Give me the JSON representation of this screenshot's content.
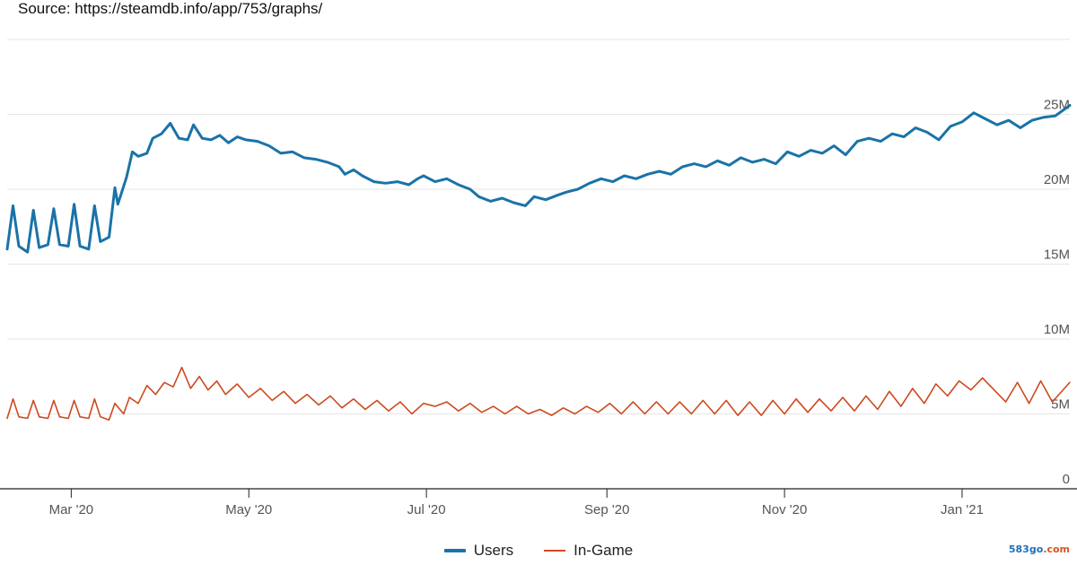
{
  "source_text": "Source: https://steamdb.info/app/753/graphs/",
  "watermark": {
    "name": "583go",
    "ext": ".com"
  },
  "chart_data": {
    "type": "line",
    "title": "",
    "xlabel": "",
    "ylabel": "",
    "x_range": [
      "2020-02-08",
      "2021-02-07"
    ],
    "ylim": [
      0,
      30000000
    ],
    "y_ticks": [
      {
        "value": 0,
        "label": "0"
      },
      {
        "value": 5000000,
        "label": "5M"
      },
      {
        "value": 10000000,
        "label": "10M"
      },
      {
        "value": 15000000,
        "label": "15M"
      },
      {
        "value": 20000000,
        "label": "20M"
      },
      {
        "value": 25000000,
        "label": "25M"
      }
    ],
    "x_ticks": [
      {
        "date": "2020-03-01",
        "label": "Mar '20"
      },
      {
        "date": "2020-05-01",
        "label": "May '20"
      },
      {
        "date": "2020-07-01",
        "label": "Jul '20"
      },
      {
        "date": "2020-09-01",
        "label": "Sep '20"
      },
      {
        "date": "2020-11-01",
        "label": "Nov '20"
      },
      {
        "date": "2021-01-01",
        "label": "Jan '21"
      }
    ],
    "grid": true,
    "legend_position": "bottom-center",
    "series": [
      {
        "name": "Users",
        "color": "#1a73a8",
        "points": [
          [
            "2020-02-08",
            16000000
          ],
          [
            "2020-02-10",
            18900000
          ],
          [
            "2020-02-12",
            16200000
          ],
          [
            "2020-02-15",
            15800000
          ],
          [
            "2020-02-17",
            18600000
          ],
          [
            "2020-02-19",
            16100000
          ],
          [
            "2020-02-22",
            16300000
          ],
          [
            "2020-02-24",
            18700000
          ],
          [
            "2020-02-26",
            16300000
          ],
          [
            "2020-02-29",
            16200000
          ],
          [
            "2020-03-02",
            19000000
          ],
          [
            "2020-03-04",
            16200000
          ],
          [
            "2020-03-07",
            16000000
          ],
          [
            "2020-03-09",
            18900000
          ],
          [
            "2020-03-11",
            16500000
          ],
          [
            "2020-03-14",
            16800000
          ],
          [
            "2020-03-16",
            20100000
          ],
          [
            "2020-03-17",
            19000000
          ],
          [
            "2020-03-20",
            20800000
          ],
          [
            "2020-03-22",
            22500000
          ],
          [
            "2020-03-24",
            22200000
          ],
          [
            "2020-03-27",
            22400000
          ],
          [
            "2020-03-29",
            23400000
          ],
          [
            "2020-04-01",
            23700000
          ],
          [
            "2020-04-04",
            24400000
          ],
          [
            "2020-04-07",
            23400000
          ],
          [
            "2020-04-10",
            23300000
          ],
          [
            "2020-04-12",
            24300000
          ],
          [
            "2020-04-15",
            23400000
          ],
          [
            "2020-04-18",
            23300000
          ],
          [
            "2020-04-21",
            23600000
          ],
          [
            "2020-04-24",
            23100000
          ],
          [
            "2020-04-27",
            23500000
          ],
          [
            "2020-04-30",
            23300000
          ],
          [
            "2020-05-04",
            23200000
          ],
          [
            "2020-05-08",
            22900000
          ],
          [
            "2020-05-12",
            22400000
          ],
          [
            "2020-05-16",
            22500000
          ],
          [
            "2020-05-20",
            22100000
          ],
          [
            "2020-05-24",
            22000000
          ],
          [
            "2020-05-28",
            21800000
          ],
          [
            "2020-06-01",
            21500000
          ],
          [
            "2020-06-03",
            21000000
          ],
          [
            "2020-06-06",
            21300000
          ],
          [
            "2020-06-09",
            20900000
          ],
          [
            "2020-06-13",
            20500000
          ],
          [
            "2020-06-17",
            20400000
          ],
          [
            "2020-06-21",
            20500000
          ],
          [
            "2020-06-25",
            20300000
          ],
          [
            "2020-06-28",
            20700000
          ],
          [
            "2020-06-30",
            20900000
          ],
          [
            "2020-07-04",
            20500000
          ],
          [
            "2020-07-08",
            20700000
          ],
          [
            "2020-07-12",
            20300000
          ],
          [
            "2020-07-16",
            20000000
          ],
          [
            "2020-07-19",
            19500000
          ],
          [
            "2020-07-23",
            19200000
          ],
          [
            "2020-07-27",
            19400000
          ],
          [
            "2020-07-31",
            19100000
          ],
          [
            "2020-08-04",
            18900000
          ],
          [
            "2020-08-07",
            19500000
          ],
          [
            "2020-08-11",
            19300000
          ],
          [
            "2020-08-15",
            19600000
          ],
          [
            "2020-08-18",
            19800000
          ],
          [
            "2020-08-22",
            20000000
          ],
          [
            "2020-08-26",
            20400000
          ],
          [
            "2020-08-30",
            20700000
          ],
          [
            "2020-09-03",
            20500000
          ],
          [
            "2020-09-07",
            20900000
          ],
          [
            "2020-09-11",
            20700000
          ],
          [
            "2020-09-15",
            21000000
          ],
          [
            "2020-09-19",
            21200000
          ],
          [
            "2020-09-23",
            21000000
          ],
          [
            "2020-09-27",
            21500000
          ],
          [
            "2020-10-01",
            21700000
          ],
          [
            "2020-10-05",
            21500000
          ],
          [
            "2020-10-09",
            21900000
          ],
          [
            "2020-10-13",
            21600000
          ],
          [
            "2020-10-17",
            22100000
          ],
          [
            "2020-10-21",
            21800000
          ],
          [
            "2020-10-25",
            22000000
          ],
          [
            "2020-10-29",
            21700000
          ],
          [
            "2020-11-02",
            22500000
          ],
          [
            "2020-11-06",
            22200000
          ],
          [
            "2020-11-10",
            22600000
          ],
          [
            "2020-11-14",
            22400000
          ],
          [
            "2020-11-18",
            22900000
          ],
          [
            "2020-11-22",
            22300000
          ],
          [
            "2020-11-26",
            23200000
          ],
          [
            "2020-11-30",
            23400000
          ],
          [
            "2020-12-04",
            23200000
          ],
          [
            "2020-12-08",
            23700000
          ],
          [
            "2020-12-12",
            23500000
          ],
          [
            "2020-12-16",
            24100000
          ],
          [
            "2020-12-20",
            23800000
          ],
          [
            "2020-12-24",
            23300000
          ],
          [
            "2020-12-28",
            24200000
          ],
          [
            "2021-01-01",
            24500000
          ],
          [
            "2021-01-05",
            25100000
          ],
          [
            "2021-01-09",
            24700000
          ],
          [
            "2021-01-13",
            24300000
          ],
          [
            "2021-01-17",
            24600000
          ],
          [
            "2021-01-21",
            24100000
          ],
          [
            "2021-01-25",
            24600000
          ],
          [
            "2021-01-29",
            24800000
          ],
          [
            "2021-02-02",
            24900000
          ],
          [
            "2021-02-07",
            25600000
          ]
        ]
      },
      {
        "name": "In-Game",
        "color": "#cc4a1f",
        "points": [
          [
            "2020-02-08",
            4700000
          ],
          [
            "2020-02-10",
            6000000
          ],
          [
            "2020-02-12",
            4800000
          ],
          [
            "2020-02-15",
            4700000
          ],
          [
            "2020-02-17",
            5900000
          ],
          [
            "2020-02-19",
            4800000
          ],
          [
            "2020-02-22",
            4700000
          ],
          [
            "2020-02-24",
            5900000
          ],
          [
            "2020-02-26",
            4800000
          ],
          [
            "2020-02-29",
            4700000
          ],
          [
            "2020-03-02",
            5900000
          ],
          [
            "2020-03-04",
            4800000
          ],
          [
            "2020-03-07",
            4700000
          ],
          [
            "2020-03-09",
            6000000
          ],
          [
            "2020-03-11",
            4800000
          ],
          [
            "2020-03-14",
            4600000
          ],
          [
            "2020-03-16",
            5700000
          ],
          [
            "2020-03-19",
            5000000
          ],
          [
            "2020-03-21",
            6100000
          ],
          [
            "2020-03-24",
            5700000
          ],
          [
            "2020-03-27",
            6900000
          ],
          [
            "2020-03-30",
            6300000
          ],
          [
            "2020-04-02",
            7100000
          ],
          [
            "2020-04-05",
            6800000
          ],
          [
            "2020-04-08",
            8100000
          ],
          [
            "2020-04-11",
            6700000
          ],
          [
            "2020-04-14",
            7500000
          ],
          [
            "2020-04-17",
            6600000
          ],
          [
            "2020-04-20",
            7200000
          ],
          [
            "2020-04-23",
            6300000
          ],
          [
            "2020-04-27",
            7000000
          ],
          [
            "2020-05-01",
            6100000
          ],
          [
            "2020-05-05",
            6700000
          ],
          [
            "2020-05-09",
            5900000
          ],
          [
            "2020-05-13",
            6500000
          ],
          [
            "2020-05-17",
            5700000
          ],
          [
            "2020-05-21",
            6300000
          ],
          [
            "2020-05-25",
            5600000
          ],
          [
            "2020-05-29",
            6200000
          ],
          [
            "2020-06-02",
            5400000
          ],
          [
            "2020-06-06",
            6000000
          ],
          [
            "2020-06-10",
            5300000
          ],
          [
            "2020-06-14",
            5900000
          ],
          [
            "2020-06-18",
            5200000
          ],
          [
            "2020-06-22",
            5800000
          ],
          [
            "2020-06-26",
            5000000
          ],
          [
            "2020-06-30",
            5700000
          ],
          [
            "2020-07-04",
            5500000
          ],
          [
            "2020-07-08",
            5800000
          ],
          [
            "2020-07-12",
            5200000
          ],
          [
            "2020-07-16",
            5700000
          ],
          [
            "2020-07-20",
            5100000
          ],
          [
            "2020-07-24",
            5500000
          ],
          [
            "2020-07-28",
            5000000
          ],
          [
            "2020-08-01",
            5500000
          ],
          [
            "2020-08-05",
            5000000
          ],
          [
            "2020-08-09",
            5300000
          ],
          [
            "2020-08-13",
            4900000
          ],
          [
            "2020-08-17",
            5400000
          ],
          [
            "2020-08-21",
            5000000
          ],
          [
            "2020-08-25",
            5500000
          ],
          [
            "2020-08-29",
            5100000
          ],
          [
            "2020-09-02",
            5700000
          ],
          [
            "2020-09-06",
            5000000
          ],
          [
            "2020-09-10",
            5800000
          ],
          [
            "2020-09-14",
            5000000
          ],
          [
            "2020-09-18",
            5800000
          ],
          [
            "2020-09-22",
            5000000
          ],
          [
            "2020-09-26",
            5800000
          ],
          [
            "2020-09-30",
            5000000
          ],
          [
            "2020-10-04",
            5900000
          ],
          [
            "2020-10-08",
            5000000
          ],
          [
            "2020-10-12",
            5900000
          ],
          [
            "2020-10-16",
            4900000
          ],
          [
            "2020-10-20",
            5800000
          ],
          [
            "2020-10-24",
            4900000
          ],
          [
            "2020-10-28",
            5900000
          ],
          [
            "2020-11-01",
            5000000
          ],
          [
            "2020-11-05",
            6000000
          ],
          [
            "2020-11-09",
            5100000
          ],
          [
            "2020-11-13",
            6000000
          ],
          [
            "2020-11-17",
            5200000
          ],
          [
            "2020-11-21",
            6100000
          ],
          [
            "2020-11-25",
            5200000
          ],
          [
            "2020-11-29",
            6200000
          ],
          [
            "2020-12-03",
            5300000
          ],
          [
            "2020-12-07",
            6500000
          ],
          [
            "2020-12-11",
            5500000
          ],
          [
            "2020-12-15",
            6700000
          ],
          [
            "2020-12-19",
            5700000
          ],
          [
            "2020-12-23",
            7000000
          ],
          [
            "2020-12-27",
            6200000
          ],
          [
            "2020-12-31",
            7200000
          ],
          [
            "2021-01-04",
            6600000
          ],
          [
            "2021-01-08",
            7400000
          ],
          [
            "2021-01-12",
            6600000
          ],
          [
            "2021-01-16",
            5800000
          ],
          [
            "2021-01-20",
            7100000
          ],
          [
            "2021-01-24",
            5700000
          ],
          [
            "2021-01-28",
            7200000
          ],
          [
            "2021-02-01",
            5800000
          ],
          [
            "2021-02-07",
            7100000
          ]
        ]
      }
    ]
  }
}
